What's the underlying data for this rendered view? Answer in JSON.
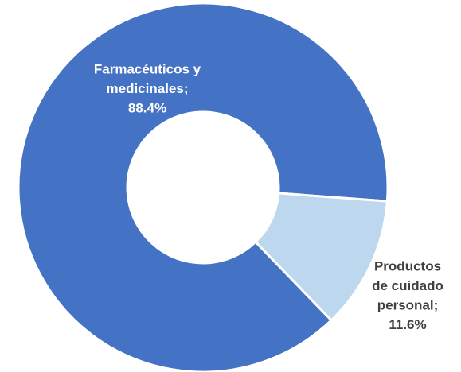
{
  "chart_data": {
    "type": "donut",
    "values": [
      88.4,
      11.6
    ],
    "value_labels": [
      [
        "Farmacéuticos y",
        "medicinales;",
        "88.4%"
      ],
      [
        "Productos",
        "de cuidado",
        "personal;",
        "11.6%"
      ]
    ],
    "colors": [
      "#4472c4",
      "#bdd7ee"
    ],
    "label_colors": [
      "#ffffff",
      "#404040"
    ]
  }
}
